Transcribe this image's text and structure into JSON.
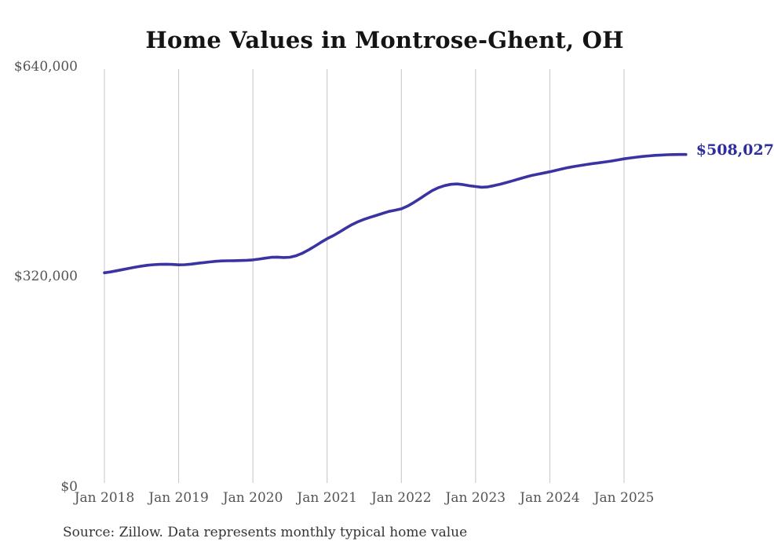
{
  "page": {
    "title": "Home Values in Montrose-Ghent, OH"
  },
  "chart_data": {
    "type": "line",
    "title": "Home Values in Montrose-Ghent, OH",
    "xlabel": "",
    "ylabel": "",
    "ylim": [
      0,
      640000
    ],
    "y_ticks": [
      640000,
      320000,
      0
    ],
    "y_tick_labels": [
      "$640,000",
      "$320,000",
      "$0"
    ],
    "x_tick_labels": [
      "Jan 2018",
      "Jan 2019",
      "Jan 2020",
      "Jan 2021",
      "Jan 2022",
      "Jan 2023",
      "Jan 2024",
      "Jan 2025"
    ],
    "grid": "vertical-only",
    "legend": "none",
    "start_month": "2018-01",
    "end_month": "2025-11",
    "end_label": "$508,027",
    "last_value": 508027,
    "series": [
      {
        "name": "Monthly typical home value",
        "values": [
          325100,
          326400,
          328200,
          330100,
          332000,
          333800,
          335400,
          336700,
          337600,
          338100,
          338300,
          338000,
          337400,
          337600,
          338500,
          339700,
          340800,
          341900,
          342800,
          343400,
          343700,
          343800,
          344000,
          344400,
          345000,
          346200,
          347700,
          349000,
          349300,
          348600,
          349200,
          351500,
          355300,
          360400,
          366200,
          372100,
          377800,
          382600,
          388100,
          394000,
          399400,
          404000,
          407800,
          411000,
          414000,
          417000,
          419900,
          421900,
          424000,
          428200,
          433700,
          439800,
          446200,
          452300,
          456800,
          459900,
          461900,
          462500,
          461400,
          459700,
          458400,
          457300,
          458000,
          459900,
          462100,
          464600,
          467300,
          470100,
          472900,
          475400,
          477400,
          479300,
          481300,
          483500,
          485800,
          487800,
          489500,
          491100,
          492600,
          494000,
          495300,
          496600,
          497900,
          499600,
          501300,
          502700,
          503900,
          504900,
          505800,
          506600,
          507200,
          507600,
          507900,
          508000,
          508027
        ]
      }
    ],
    "colors": {
      "line": "#3a34a3",
      "end_label": "#2d2d9b",
      "grid": "#c4c4c4",
      "axis_labels": "#545454",
      "title": "#141414",
      "source": "#343434"
    }
  },
  "source_note": "Source: Zillow. Data represents monthly typical home value"
}
